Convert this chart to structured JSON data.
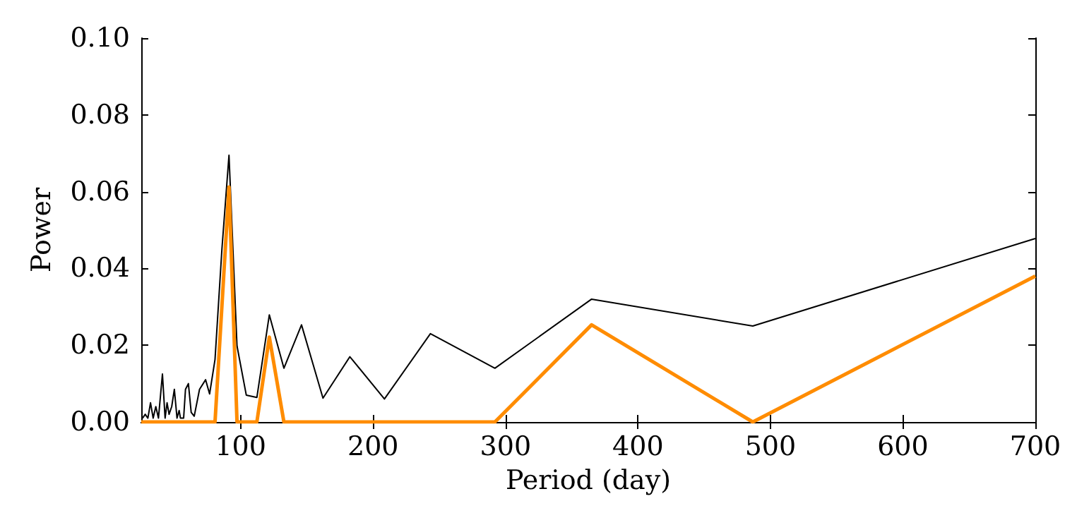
{
  "chart_data": {
    "type": "line",
    "xlabel": "Period (day)",
    "ylabel": "Power",
    "xlim": [
      25,
      700
    ],
    "xticks": [
      100,
      200,
      300,
      400,
      500,
      600,
      700
    ],
    "ylim": [
      0,
      0.1
    ],
    "yticks": [
      {
        "value": 0,
        "label": "0.00"
      },
      {
        "value": 0.02,
        "label": "0.02"
      },
      {
        "value": 0.04,
        "label": "0.04"
      },
      {
        "value": 0.06,
        "label": "0.06"
      },
      {
        "value": 0.08,
        "label": "0.08"
      },
      {
        "value": 0.1,
        "label": "0.10"
      }
    ],
    "grid": false,
    "marker": "none",
    "line_style": "solid",
    "series": [
      {
        "color": "#000000",
        "x": [
          26,
          28,
          30,
          32,
          34,
          36,
          38,
          41,
          43,
          44.5,
          46,
          48,
          50,
          52,
          53.6,
          54.6,
          57,
          58.4,
          60.6,
          62.7,
          65,
          69,
          73.6,
          76.6,
          80.7,
          85.9,
          91.25,
          97.3,
          104.3,
          112.3,
          121.7,
          132.7,
          146,
          162.2,
          182.5,
          208.6,
          243.3,
          292,
          365,
          486.7,
          700
        ],
        "values": [
          0.001,
          0.002,
          0.001,
          0.005,
          0.001,
          0.004,
          0.001,
          0.0125,
          0.001,
          0.005,
          0.002,
          0.004,
          0.0085,
          0.001,
          0.003,
          0.001,
          0.001,
          0.0085,
          0.01,
          0.0025,
          0.0015,
          0.0085,
          0.011,
          0.0073,
          0.0163,
          0.045,
          0.0695,
          0.0198,
          0.007,
          0.0064,
          0.0279,
          0.014,
          0.0253,
          0.0062,
          0.017,
          0.006,
          0.023,
          0.014,
          0.032,
          0.025,
          0.0478
        ]
      },
      {
        "color": "#ff8c00",
        "x": [
          25,
          80.7,
          91.25,
          97.3,
          112.3,
          121.7,
          132.7,
          292,
          365,
          486.7,
          700
        ],
        "values": [
          0,
          0,
          0.0612,
          0,
          0,
          0.0221,
          0,
          0,
          0.0253,
          0,
          0.038
        ]
      }
    ]
  }
}
